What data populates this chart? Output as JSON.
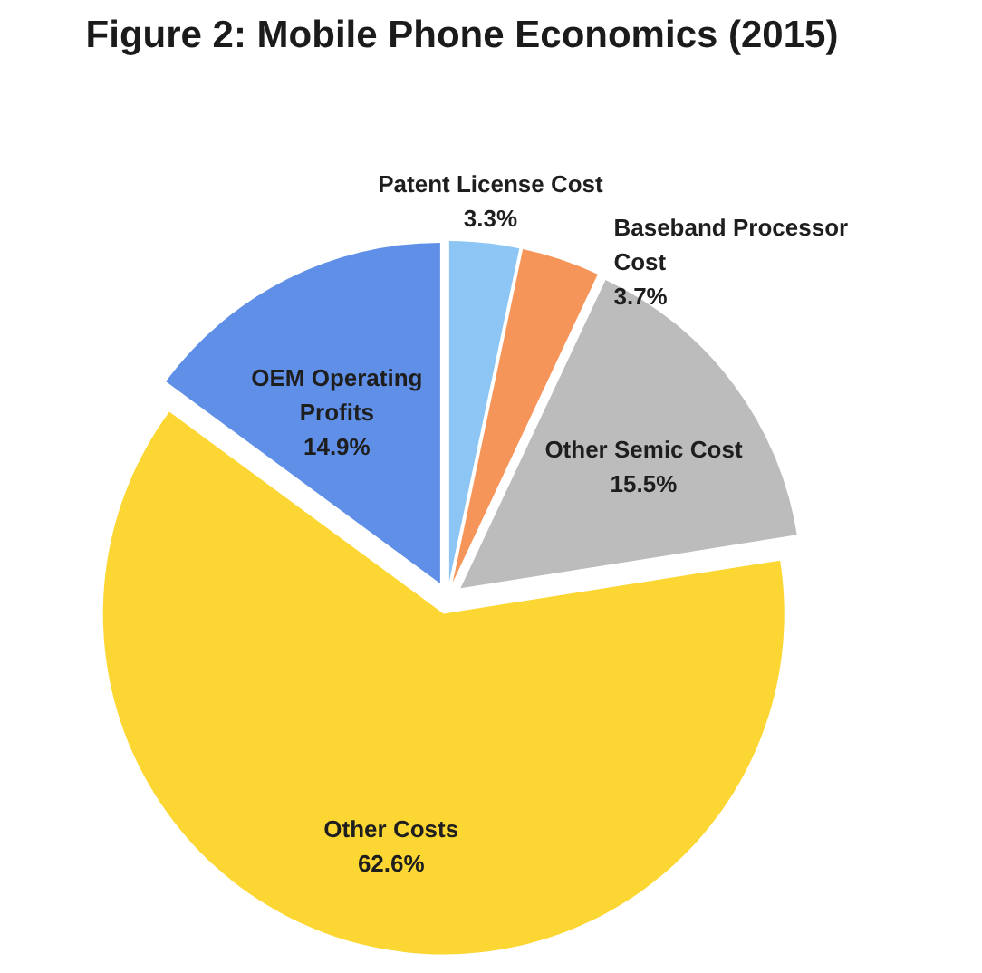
{
  "chart_data": {
    "type": "pie",
    "title": "Figure 2: Mobile Phone Economics (2015)",
    "categories": [
      "Patent License Cost",
      "Baseband Processor Cost",
      "Other Semic Cost",
      "Other Costs",
      "OEM Operating Profits"
    ],
    "values": [
      3.3,
      3.7,
      15.5,
      62.6,
      14.9
    ],
    "value_labels": [
      "3.3%",
      "3.7%",
      "15.5%",
      "62.6%",
      "14.9%"
    ],
    "colors": [
      "#8dc6f4",
      "#f6955a",
      "#bcbcbc",
      "#fcd733",
      "#5f8fe6"
    ]
  }
}
